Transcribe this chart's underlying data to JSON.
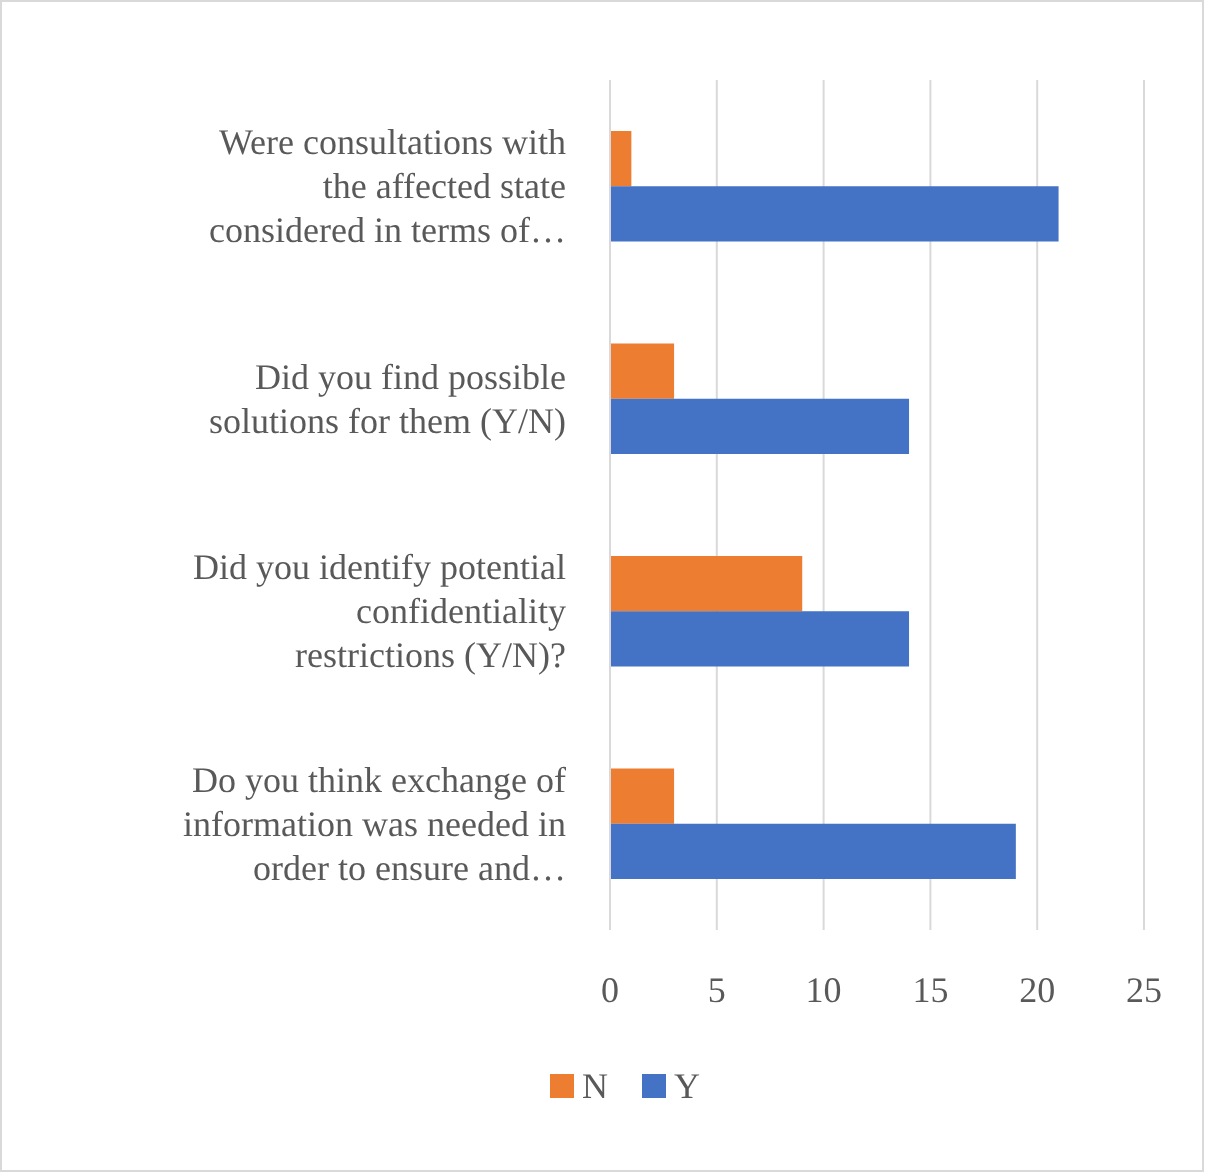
{
  "chart_data": {
    "type": "bar",
    "orientation": "horizontal",
    "categories": [
      "Were consultations with the affected state considered in terms of…",
      "Did you find possible solutions for them (Y/N)",
      "Did you identify potential confidentiality restrictions (Y/N)?",
      "Do you think exchange of information was needed in order to ensure and…"
    ],
    "series": [
      {
        "name": "N",
        "color": "#ed7d31",
        "values": [
          1,
          3,
          9,
          3
        ]
      },
      {
        "name": "Y",
        "color": "#4472c4",
        "values": [
          21,
          14,
          14,
          19
        ]
      }
    ],
    "xlim": [
      0,
      25
    ],
    "xticks": [
      0,
      5,
      10,
      15,
      20,
      25
    ],
    "grid": "x",
    "legend": "bottom"
  }
}
